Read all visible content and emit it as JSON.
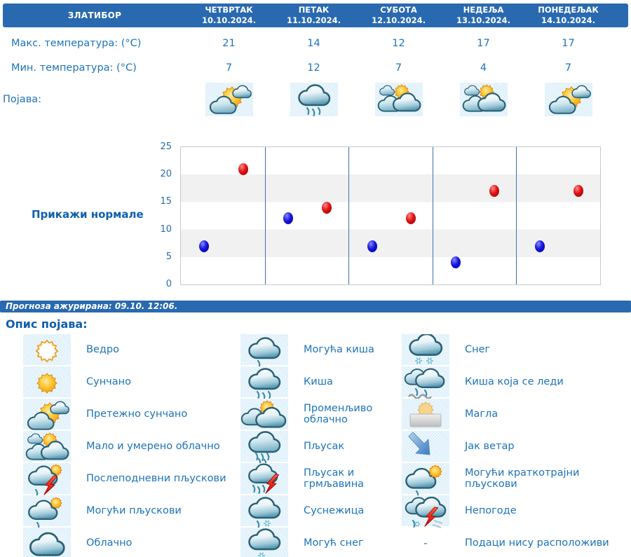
{
  "header": {
    "location": "ЗЛАТИБОР",
    "days": [
      {
        "name": "ЧЕТВРТАК",
        "date": "10.10.2024."
      },
      {
        "name": "ПЕТАК",
        "date": "11.10.2024."
      },
      {
        "name": "СУБОТА",
        "date": "12.10.2024."
      },
      {
        "name": "НЕДЕЉА",
        "date": "13.10.2024."
      },
      {
        "name": "ПОНЕДЕЉАК",
        "date": "14.10.2024."
      }
    ]
  },
  "table": {
    "max_label": "Макс. температура: (°C)",
    "min_label": "Мин. температура: (°C)",
    "phenomena_label": "Појава:",
    "max_temps": [
      "21",
      "14",
      "12",
      "17",
      "17"
    ],
    "min_temps": [
      "7",
      "12",
      "7",
      "4",
      "7"
    ],
    "day_icons": [
      "mostly-sunny",
      "rain",
      "partly-cloudy",
      "partly-cloudy",
      "mostly-sunny"
    ]
  },
  "normals_link": "Прикажи нормале",
  "chart_data": {
    "type": "scatter",
    "categories": [
      "10.10.2024.",
      "11.10.2024.",
      "12.10.2024.",
      "13.10.2024.",
      "14.10.2024."
    ],
    "series": [
      {
        "name": "Макс. температура (°C)",
        "color": "#d40000",
        "values": [
          21,
          14,
          12,
          17,
          17
        ]
      },
      {
        "name": "Мин. температура (°C)",
        "color": "#0f0fd4",
        "values": [
          7,
          12,
          7,
          4,
          7
        ]
      }
    ],
    "ylim": [
      0,
      25
    ],
    "ytick_step": 5,
    "yticks": [
      0,
      5,
      10,
      15,
      20,
      25
    ],
    "grid": "alternating horizontal bands",
    "band_color": "#f1f1f1",
    "separator_color": "#3f6fae",
    "legend_position": "none"
  },
  "status_bar": {
    "text": "Прогноза ажурирана:  09.10. 12:06."
  },
  "legend": {
    "title": "Опис појава:",
    "columns": [
      [
        {
          "icon": "clear",
          "label": "Ведро"
        },
        {
          "icon": "sunny",
          "label": "Сунчано"
        },
        {
          "icon": "mostly-sunny",
          "label": "Претежно сунчано"
        },
        {
          "icon": "partly-cloudy",
          "label": "Мало и умерено облачно"
        },
        {
          "icon": "afternoon-showers",
          "label": "Послеподневни пљускови"
        },
        {
          "icon": "possible-showers",
          "label": "Могући пљускови"
        },
        {
          "icon": "cloudy",
          "label": "Облачно"
        }
      ],
      [
        {
          "icon": "possible-rain",
          "label": "Могућа киша"
        },
        {
          "icon": "rain",
          "label": "Киша"
        },
        {
          "icon": "variable-cloudy",
          "label": "Променљиво облачно"
        },
        {
          "icon": "shower",
          "label": "Пљусак"
        },
        {
          "icon": "shower-thunder",
          "label": "Пљусак и грмљавина"
        },
        {
          "icon": "sleet",
          "label": "Суснежица"
        },
        {
          "icon": "possible-snow",
          "label": "Могућ снег"
        }
      ],
      [
        {
          "icon": "snow",
          "label": "Снег"
        },
        {
          "icon": "freezing-rain",
          "label": "Киша која се леди"
        },
        {
          "icon": "fog",
          "label": "Магла"
        },
        {
          "icon": "strong-wind",
          "label": "Јак ветар"
        },
        {
          "icon": "possible-short-showers",
          "label": "Могући краткотрајни пљускови"
        },
        {
          "icon": "storms",
          "label": "Непогоде"
        },
        {
          "icon": "none",
          "dash": "-",
          "label": "Подаци нису расположиви"
        }
      ]
    ]
  },
  "colors": {
    "bar_blue": "#2969b0",
    "text_blue": "#1d73ba",
    "heading_blue": "#0f5fad",
    "max_dot_red": "#d40000",
    "min_dot_blue": "#0f0fd4",
    "icon_cell_bg": "#dceffa",
    "band_gray": "#f1f1f1"
  }
}
